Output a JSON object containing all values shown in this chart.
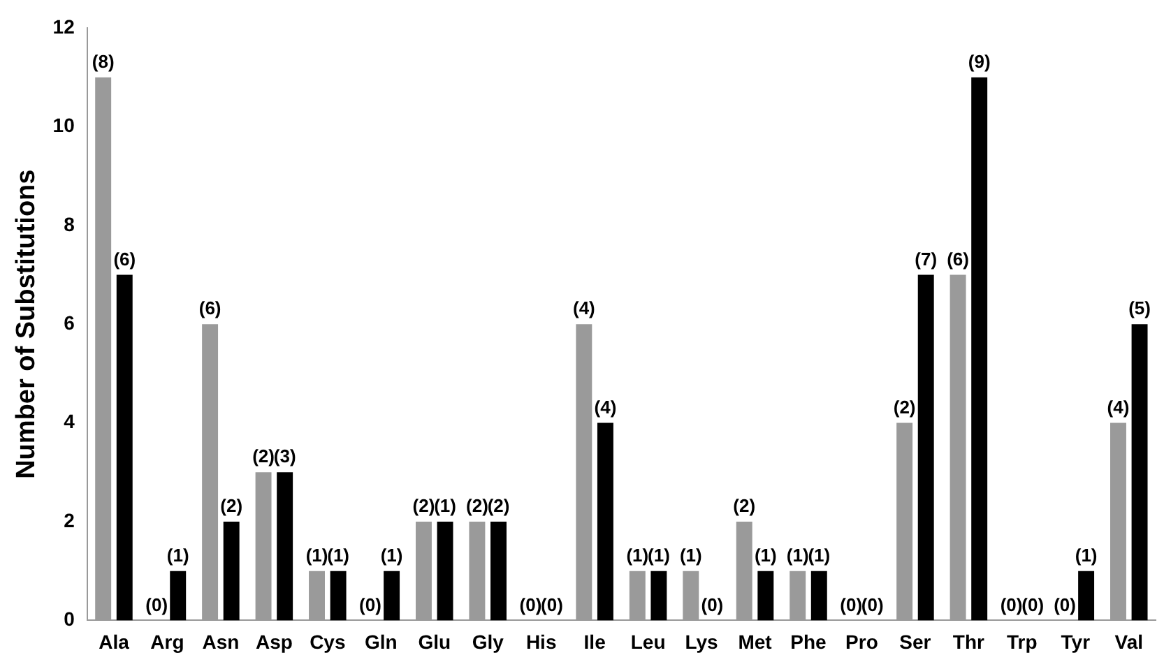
{
  "chart_data": {
    "type": "bar",
    "ylabel": "Number of Substitutions",
    "categories": [
      "Ala",
      "Arg",
      "Asn",
      "Asp",
      "Cys",
      "Gln",
      "Glu",
      "Gly",
      "His",
      "Ile",
      "Leu",
      "Lys",
      "Met",
      "Phe",
      "Pro",
      "Ser",
      "Thr",
      "Trp",
      "Tyr",
      "Val"
    ],
    "series": [
      {
        "color": "#9a9a9a",
        "values": [
          11,
          0,
          6,
          3,
          1,
          0,
          2,
          2,
          0,
          6,
          1,
          1,
          2,
          1,
          0,
          4,
          7,
          0,
          0,
          4
        ]
      },
      {
        "color": "#000000",
        "values": [
          7,
          1,
          2,
          3,
          1,
          1,
          2,
          2,
          0,
          4,
          1,
          0,
          1,
          1,
          0,
          7,
          11,
          0,
          1,
          6
        ]
      }
    ],
    "annotations": [
      {
        "text": "(8)",
        "x": "Ala",
        "y": 11
      },
      {
        "text": "(6)",
        "x": "Ala",
        "y": 7
      },
      {
        "text": "(0)",
        "x": "Arg",
        "y": 0
      },
      {
        "text": "(1)",
        "x": "Arg",
        "y": 1
      },
      {
        "text": "(6)",
        "x": "Asn",
        "y": 6
      },
      {
        "text": "(2)",
        "x": "Asn",
        "y": 2
      },
      {
        "text": "(2)",
        "x": "Asp",
        "y": 3
      },
      {
        "text": "(3)",
        "x": "Asp",
        "y": 3
      },
      {
        "text": "(1)",
        "x": "Cys",
        "y": 1
      },
      {
        "text": "(1)",
        "x": "Cys",
        "y": 1
      },
      {
        "text": "(0)",
        "x": "Gln",
        "y": 0
      },
      {
        "text": "(1)",
        "x": "Gln",
        "y": 1
      },
      {
        "text": "(2)",
        "x": "Glu",
        "y": 2
      },
      {
        "text": "(1)",
        "x": "Glu",
        "y": 2
      },
      {
        "text": "(2)",
        "x": "Gly",
        "y": 2
      },
      {
        "text": "(2)",
        "x": "Gly",
        "y": 2
      },
      {
        "text": "(0)",
        "x": "His",
        "y": 0
      },
      {
        "text": "(0)",
        "x": "His",
        "y": 0
      },
      {
        "text": "(4)",
        "x": "Ile",
        "y": 6
      },
      {
        "text": "(4)",
        "x": "Ile",
        "y": 4
      },
      {
        "text": "(1)",
        "x": "Leu",
        "y": 1
      },
      {
        "text": "(1)",
        "x": "Leu",
        "y": 1
      },
      {
        "text": "(1)",
        "x": "Lys",
        "y": 1
      },
      {
        "text": "(0)",
        "x": "Lys",
        "y": 0
      },
      {
        "text": "(2)",
        "x": "Met",
        "y": 2
      },
      {
        "text": "(1)",
        "x": "Met",
        "y": 1
      },
      {
        "text": "(1)",
        "x": "Phe",
        "y": 1
      },
      {
        "text": "(1)",
        "x": "Phe",
        "y": 1
      },
      {
        "text": "(0)",
        "x": "Pro",
        "y": 0
      },
      {
        "text": "(0)",
        "x": "Pro",
        "y": 0
      },
      {
        "text": "(2)",
        "x": "Ser",
        "y": 4
      },
      {
        "text": "(7)",
        "x": "Ser",
        "y": 7
      },
      {
        "text": "(6)",
        "x": "Thr",
        "y": 7
      },
      {
        "text": "(9)",
        "x": "Thr",
        "y": 11
      },
      {
        "text": "(0)",
        "x": "Trp",
        "y": 0
      },
      {
        "text": "(0)",
        "x": "Trp",
        "y": 0
      },
      {
        "text": "(0)",
        "x": "Tyr",
        "y": 0
      },
      {
        "text": "(1)",
        "x": "Tyr",
        "y": 1
      },
      {
        "text": "(4)",
        "x": "Val",
        "y": 4
      },
      {
        "text": "(5)",
        "x": "Val",
        "y": 6
      }
    ],
    "ylim": [
      0,
      12
    ],
    "yticks": [
      0,
      2,
      4,
      6,
      8,
      10,
      12
    ],
    "grid": false,
    "legend": false
  }
}
